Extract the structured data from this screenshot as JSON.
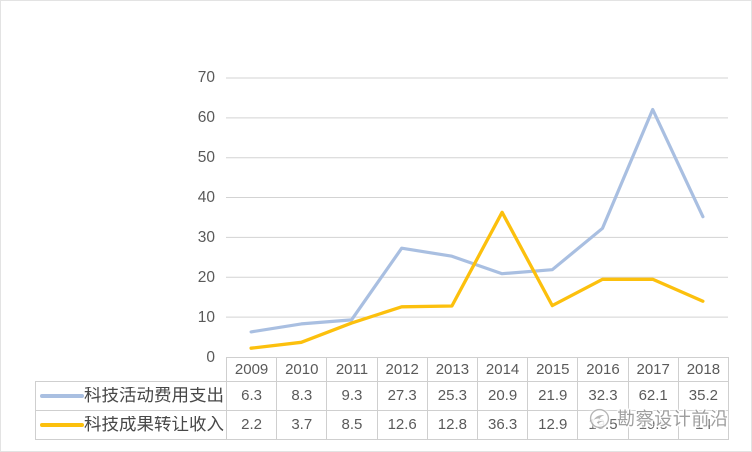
{
  "chart_data": {
    "type": "line",
    "title": "",
    "xlabel": "",
    "ylabel": "",
    "categories": [
      "2009",
      "2010",
      "2011",
      "2012",
      "2013",
      "2014",
      "2015",
      "2016",
      "2017",
      "2018"
    ],
    "series": [
      {
        "name": "科技活动费用支出",
        "color": "#a9bfe1",
        "values": [
          6.3,
          8.3,
          9.3,
          27.3,
          25.3,
          20.9,
          21.9,
          32.3,
          62.1,
          35.2
        ]
      },
      {
        "name": "科技成果转让收入",
        "color": "#fcc00d",
        "values": [
          2.2,
          3.7,
          8.5,
          12.6,
          12.8,
          36.3,
          12.9,
          19.5,
          19.5,
          14
        ]
      }
    ],
    "ylim": [
      0,
      70
    ],
    "yticks": [
      0,
      10,
      20,
      30,
      40,
      50,
      60,
      70
    ],
    "grid": "horizontal",
    "gridline_color": "#d3d3d3",
    "legend_position": "data-table-left",
    "data_table": true,
    "table_border_color": "#cfcfcf"
  },
  "watermark": {
    "text": "勘察设计前沿",
    "logo": "bird-circle-logo"
  }
}
